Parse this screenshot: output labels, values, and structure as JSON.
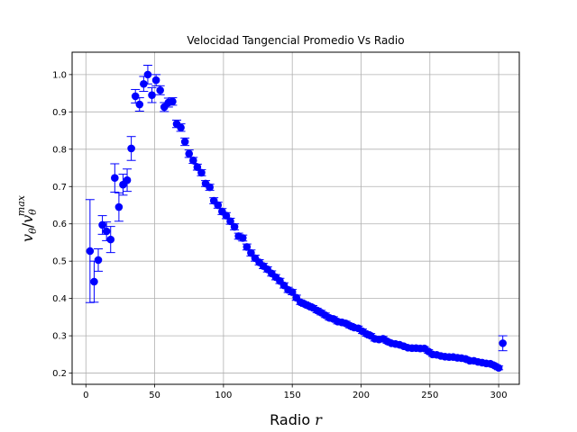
{
  "chart_data": {
    "type": "scatter",
    "title": "Velocidad Tangencial Promedio Vs Radio",
    "xlabel": "Radio r",
    "xlabel_parts": {
      "text": "Radio ",
      "var": "r"
    },
    "ylabel": "v_θ/v_θ^max",
    "ylabel_parts": {
      "v": "v",
      "sub": "θ",
      "slash": "/",
      "sup": "max"
    },
    "xlim": [
      -10,
      315
    ],
    "ylim": [
      0.17,
      1.06
    ],
    "xticks": [
      0,
      50,
      100,
      150,
      200,
      250,
      300
    ],
    "yticks": [
      0.2,
      0.3,
      0.4,
      0.5,
      0.6,
      0.7,
      0.8,
      0.9,
      1.0
    ],
    "xtick_labels": [
      "0",
      "50",
      "100",
      "150",
      "200",
      "250",
      "300"
    ],
    "ytick_labels": [
      "0.2",
      "0.3",
      "0.4",
      "0.5",
      "0.6",
      "0.7",
      "0.8",
      "0.9",
      "1.0"
    ],
    "grid": true,
    "marker_color": "#0000ff",
    "series": [
      {
        "x": [
          3,
          6,
          9,
          12,
          15,
          18,
          21,
          24,
          27,
          30,
          33,
          36,
          39,
          42,
          45,
          48,
          51,
          54,
          57,
          60,
          63,
          66,
          69,
          72,
          75,
          78,
          81,
          84,
          87,
          90,
          93,
          96,
          99,
          102,
          105,
          108,
          111,
          114,
          117,
          120,
          123,
          126,
          129,
          132,
          135,
          138,
          141,
          144,
          147,
          150,
          153,
          156,
          159,
          162,
          165,
          168,
          171,
          174,
          177,
          180,
          183,
          186,
          189,
          192,
          195,
          198,
          201,
          204,
          207,
          210,
          213,
          216,
          219,
          222,
          225,
          228,
          231,
          234,
          237,
          240,
          243,
          246,
          249,
          252,
          255,
          258,
          261,
          264,
          267,
          270,
          273,
          276,
          279,
          282,
          285,
          288,
          291,
          294,
          297,
          300,
          303
        ],
        "y": [
          0.527,
          0.445,
          0.503,
          0.597,
          0.58,
          0.558,
          0.723,
          0.645,
          0.705,
          0.717,
          0.802,
          0.942,
          0.92,
          0.975,
          1.0,
          0.945,
          0.985,
          0.958,
          0.913,
          0.925,
          0.928,
          0.868,
          0.858,
          0.82,
          0.788,
          0.77,
          0.752,
          0.737,
          0.708,
          0.698,
          0.662,
          0.65,
          0.633,
          0.622,
          0.607,
          0.592,
          0.567,
          0.562,
          0.538,
          0.522,
          0.508,
          0.497,
          0.487,
          0.478,
          0.467,
          0.457,
          0.447,
          0.435,
          0.423,
          0.417,
          0.402,
          0.39,
          0.385,
          0.38,
          0.375,
          0.368,
          0.362,
          0.355,
          0.348,
          0.345,
          0.338,
          0.336,
          0.333,
          0.327,
          0.322,
          0.32,
          0.312,
          0.305,
          0.3,
          0.292,
          0.29,
          0.292,
          0.285,
          0.28,
          0.278,
          0.276,
          0.272,
          0.268,
          0.267,
          0.267,
          0.266,
          0.266,
          0.258,
          0.25,
          0.249,
          0.246,
          0.244,
          0.243,
          0.243,
          0.241,
          0.24,
          0.238,
          0.233,
          0.233,
          0.23,
          0.228,
          0.226,
          0.225,
          0.22,
          0.214,
          0.28
        ],
        "yerr": [
          0.138,
          0.055,
          0.03,
          0.025,
          0.025,
          0.035,
          0.038,
          0.038,
          0.028,
          0.03,
          0.032,
          0.018,
          0.018,
          0.02,
          0.025,
          0.02,
          0.015,
          0.012,
          0.012,
          0.012,
          0.01,
          0.01,
          0.01,
          0.01,
          0.01,
          0.008,
          0.008,
          0.008,
          0.008,
          0.008,
          0.008,
          0.008,
          0.008,
          0.008,
          0.008,
          0.008,
          0.008,
          0.008,
          0.008,
          0.008,
          0.008,
          0.007,
          0.007,
          0.007,
          0.007,
          0.007,
          0.007,
          0.007,
          0.007,
          0.007,
          0.007,
          0.006,
          0.006,
          0.006,
          0.006,
          0.006,
          0.006,
          0.006,
          0.006,
          0.006,
          0.006,
          0.006,
          0.006,
          0.006,
          0.006,
          0.006,
          0.006,
          0.006,
          0.006,
          0.006,
          0.006,
          0.006,
          0.005,
          0.005,
          0.005,
          0.005,
          0.005,
          0.005,
          0.005,
          0.005,
          0.005,
          0.005,
          0.005,
          0.005,
          0.005,
          0.005,
          0.005,
          0.005,
          0.005,
          0.005,
          0.005,
          0.005,
          0.005,
          0.005,
          0.005,
          0.005,
          0.005,
          0.005,
          0.005,
          0.005,
          0.02
        ]
      }
    ]
  }
}
